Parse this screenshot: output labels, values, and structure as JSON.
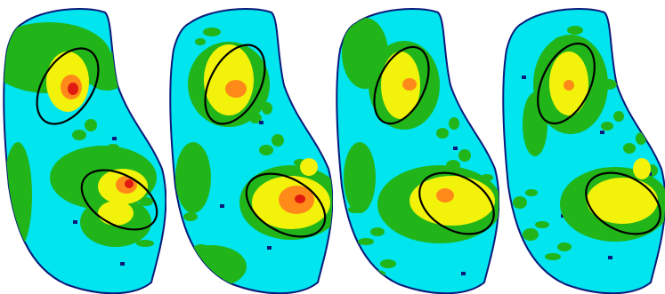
{
  "figure": {
    "colors": {
      "background": "#ffffff",
      "outline": "#0a1a7a",
      "level_0": "#00e5ee",
      "level_1": "#22b51a",
      "level_2": "#f2f20a",
      "level_3": "#ff8a1a",
      "level_4": "#e01a10",
      "roi_ellipse": "#000000"
    },
    "panels": [
      {
        "id": "panel-1"
      },
      {
        "id": "panel-2"
      },
      {
        "id": "panel-3"
      },
      {
        "id": "panel-4"
      }
    ]
  }
}
